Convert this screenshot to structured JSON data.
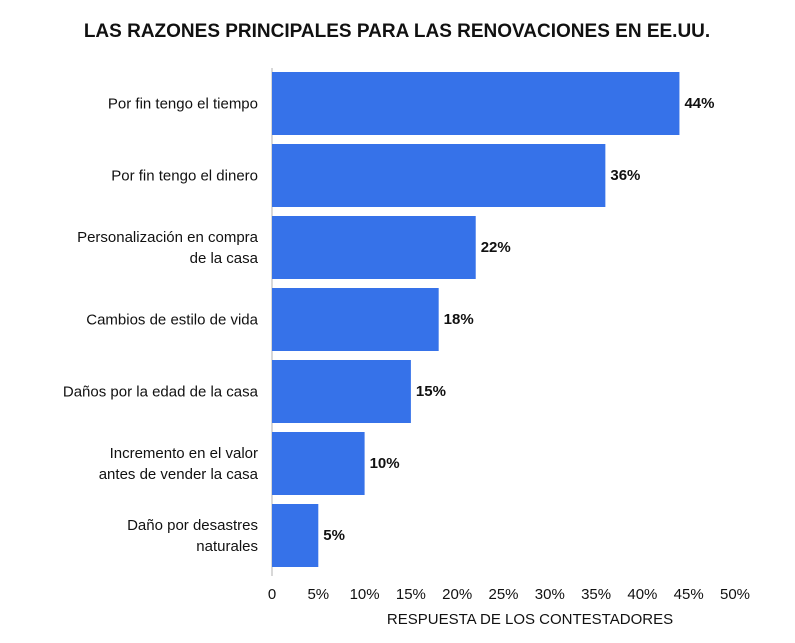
{
  "chart_data": {
    "type": "hbar",
    "title": "LAS RAZONES PRINCIPALES PARA LAS RENOVACIONES EN EE.UU.",
    "x_label": "RESPUESTA DE LOS CONTESTADORES",
    "categories": [
      "Por fin tengo el tiempo",
      "Por fin tengo el dinero",
      "Personalización en compra\nde la casa",
      "Cambios de estilo de vida",
      "Daños por la edad de la casa",
      "Incremento en el valor\nantes de vender la casa",
      "Daño por desastres\nnaturales"
    ],
    "values": [
      44,
      36,
      22,
      18,
      15,
      10,
      5
    ],
    "value_labels": [
      "44%",
      "36%",
      "22%",
      "18%",
      "15%",
      "10%",
      "5%"
    ],
    "color": "#3672e9",
    "xlim": [
      0,
      50
    ],
    "xticks": [
      0,
      {
        "value": 5,
        "label": "5%"
      },
      {
        "value": 10,
        "label": "10%"
      },
      {
        "value": 15,
        "label": "15%"
      },
      {
        "value": 20,
        "label": "20%"
      },
      {
        "value": 25,
        "label": "25%"
      },
      {
        "value": 30,
        "label": "30%"
      },
      {
        "value": 35,
        "label": "35%"
      },
      {
        "value": 40,
        "label": "40%"
      },
      {
        "value": 45,
        "label": "45%"
      },
      {
        "value": 50,
        "label": "50%"
      }
    ]
  }
}
